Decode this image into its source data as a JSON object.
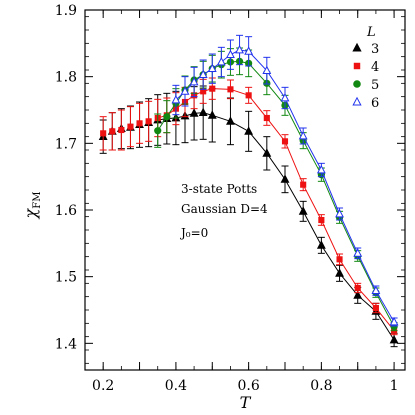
{
  "chart_data": {
    "type": "scatter",
    "xlabel": "T",
    "ylabel": "χ",
    "ylabel_sub": "FM",
    "xlim": [
      0.15,
      1.03
    ],
    "ylim": [
      1.36,
      1.9
    ],
    "xticks": [
      0.2,
      0.3,
      0.4,
      0.5,
      0.6,
      0.7,
      0.8,
      0.9,
      1.0
    ],
    "xtick_labels": [
      "0.2",
      "0.4",
      "0.6",
      "0.8",
      "1"
    ],
    "xtick_label_values": [
      0.2,
      0.4,
      0.6,
      0.8,
      1.0
    ],
    "yticks": [
      1.4,
      1.5,
      1.6,
      1.7,
      1.8,
      1.9
    ],
    "ytick_labels": [
      "1.4",
      "1.5",
      "1.6",
      "1.7",
      "1.8",
      "1.9"
    ],
    "annotations": [
      "3-state Potts",
      "Gaussian D=4",
      "J₀=0"
    ],
    "legend": {
      "title": "L",
      "position": "top-right",
      "entries": [
        "3",
        "4",
        "5",
        "6"
      ]
    },
    "series": [
      {
        "name": "3",
        "marker": "triangle-filled",
        "color": "#000000",
        "connect_from": 0.35,
        "x": [
          0.2,
          0.225,
          0.25,
          0.275,
          0.3,
          0.325,
          0.35,
          0.375,
          0.4,
          0.425,
          0.45,
          0.475,
          0.5,
          0.55,
          0.6,
          0.65,
          0.7,
          0.75,
          0.8,
          0.85,
          0.9,
          0.95,
          1.0
        ],
        "y": [
          1.71,
          1.718,
          1.722,
          1.724,
          1.728,
          1.731,
          1.735,
          1.737,
          1.738,
          1.741,
          1.745,
          1.746,
          1.742,
          1.733,
          1.718,
          1.685,
          1.646,
          1.598,
          1.547,
          1.505,
          1.472,
          1.448,
          1.405
        ],
        "err": [
          0.025,
          0.028,
          0.03,
          0.032,
          0.034,
          0.036,
          0.038,
          0.038,
          0.04,
          0.04,
          0.04,
          0.04,
          0.04,
          0.035,
          0.03,
          0.025,
          0.02,
          0.015,
          0.012,
          0.012,
          0.012,
          0.012,
          0.01
        ]
      },
      {
        "name": "4",
        "marker": "square-filled",
        "color": "#ee1111",
        "connect_from": 0.35,
        "x": [
          0.2,
          0.225,
          0.25,
          0.275,
          0.3,
          0.325,
          0.35,
          0.375,
          0.4,
          0.425,
          0.45,
          0.475,
          0.5,
          0.55,
          0.6,
          0.65,
          0.7,
          0.75,
          0.8,
          0.85,
          0.9,
          0.95,
          1.0
        ],
        "y": [
          1.715,
          1.718,
          1.72,
          1.725,
          1.73,
          1.733,
          1.738,
          1.742,
          1.752,
          1.762,
          1.772,
          1.778,
          1.782,
          1.781,
          1.772,
          1.738,
          1.703,
          1.638,
          1.585,
          1.526,
          1.483,
          1.453,
          1.419
        ],
        "err": [
          0.025,
          0.028,
          0.03,
          0.03,
          0.03,
          0.03,
          0.028,
          0.026,
          0.024,
          0.022,
          0.02,
          0.018,
          0.016,
          0.014,
          0.012,
          0.011,
          0.01,
          0.009,
          0.008,
          0.008,
          0.007,
          0.007,
          0.006
        ]
      },
      {
        "name": "5",
        "marker": "circle-filled",
        "color": "#118811",
        "connect_from": 0.35,
        "x": [
          0.35,
          0.375,
          0.4,
          0.425,
          0.45,
          0.475,
          0.5,
          0.525,
          0.55,
          0.575,
          0.6,
          0.65,
          0.7,
          0.75,
          0.8,
          0.85,
          0.9,
          0.95,
          1.0
        ],
        "y": [
          1.719,
          1.74,
          1.76,
          1.78,
          1.795,
          1.803,
          1.812,
          1.818,
          1.822,
          1.823,
          1.82,
          1.79,
          1.757,
          1.704,
          1.653,
          1.589,
          1.531,
          1.476,
          1.425
        ],
        "err": [
          0.025,
          0.024,
          0.022,
          0.021,
          0.02,
          0.02,
          0.02,
          0.02,
          0.02,
          0.02,
          0.02,
          0.017,
          0.015,
          0.012,
          0.01,
          0.009,
          0.008,
          0.007,
          0.006
        ]
      },
      {
        "name": "6",
        "marker": "triangle-open",
        "color": "#2233ee",
        "connect_from": 0.4,
        "x": [
          0.4,
          0.425,
          0.45,
          0.475,
          0.5,
          0.525,
          0.55,
          0.575,
          0.6,
          0.65,
          0.7,
          0.75,
          0.8,
          0.85,
          0.9,
          0.95,
          1.0
        ],
        "y": [
          1.765,
          1.778,
          1.792,
          1.803,
          1.812,
          1.822,
          1.833,
          1.84,
          1.838,
          1.809,
          1.768,
          1.711,
          1.66,
          1.594,
          1.535,
          1.479,
          1.432
        ],
        "err": [
          0.022,
          0.022,
          0.022,
          0.022,
          0.022,
          0.022,
          0.022,
          0.022,
          0.022,
          0.02,
          0.016,
          0.012,
          0.01,
          0.009,
          0.008,
          0.007,
          0.006
        ]
      }
    ]
  }
}
